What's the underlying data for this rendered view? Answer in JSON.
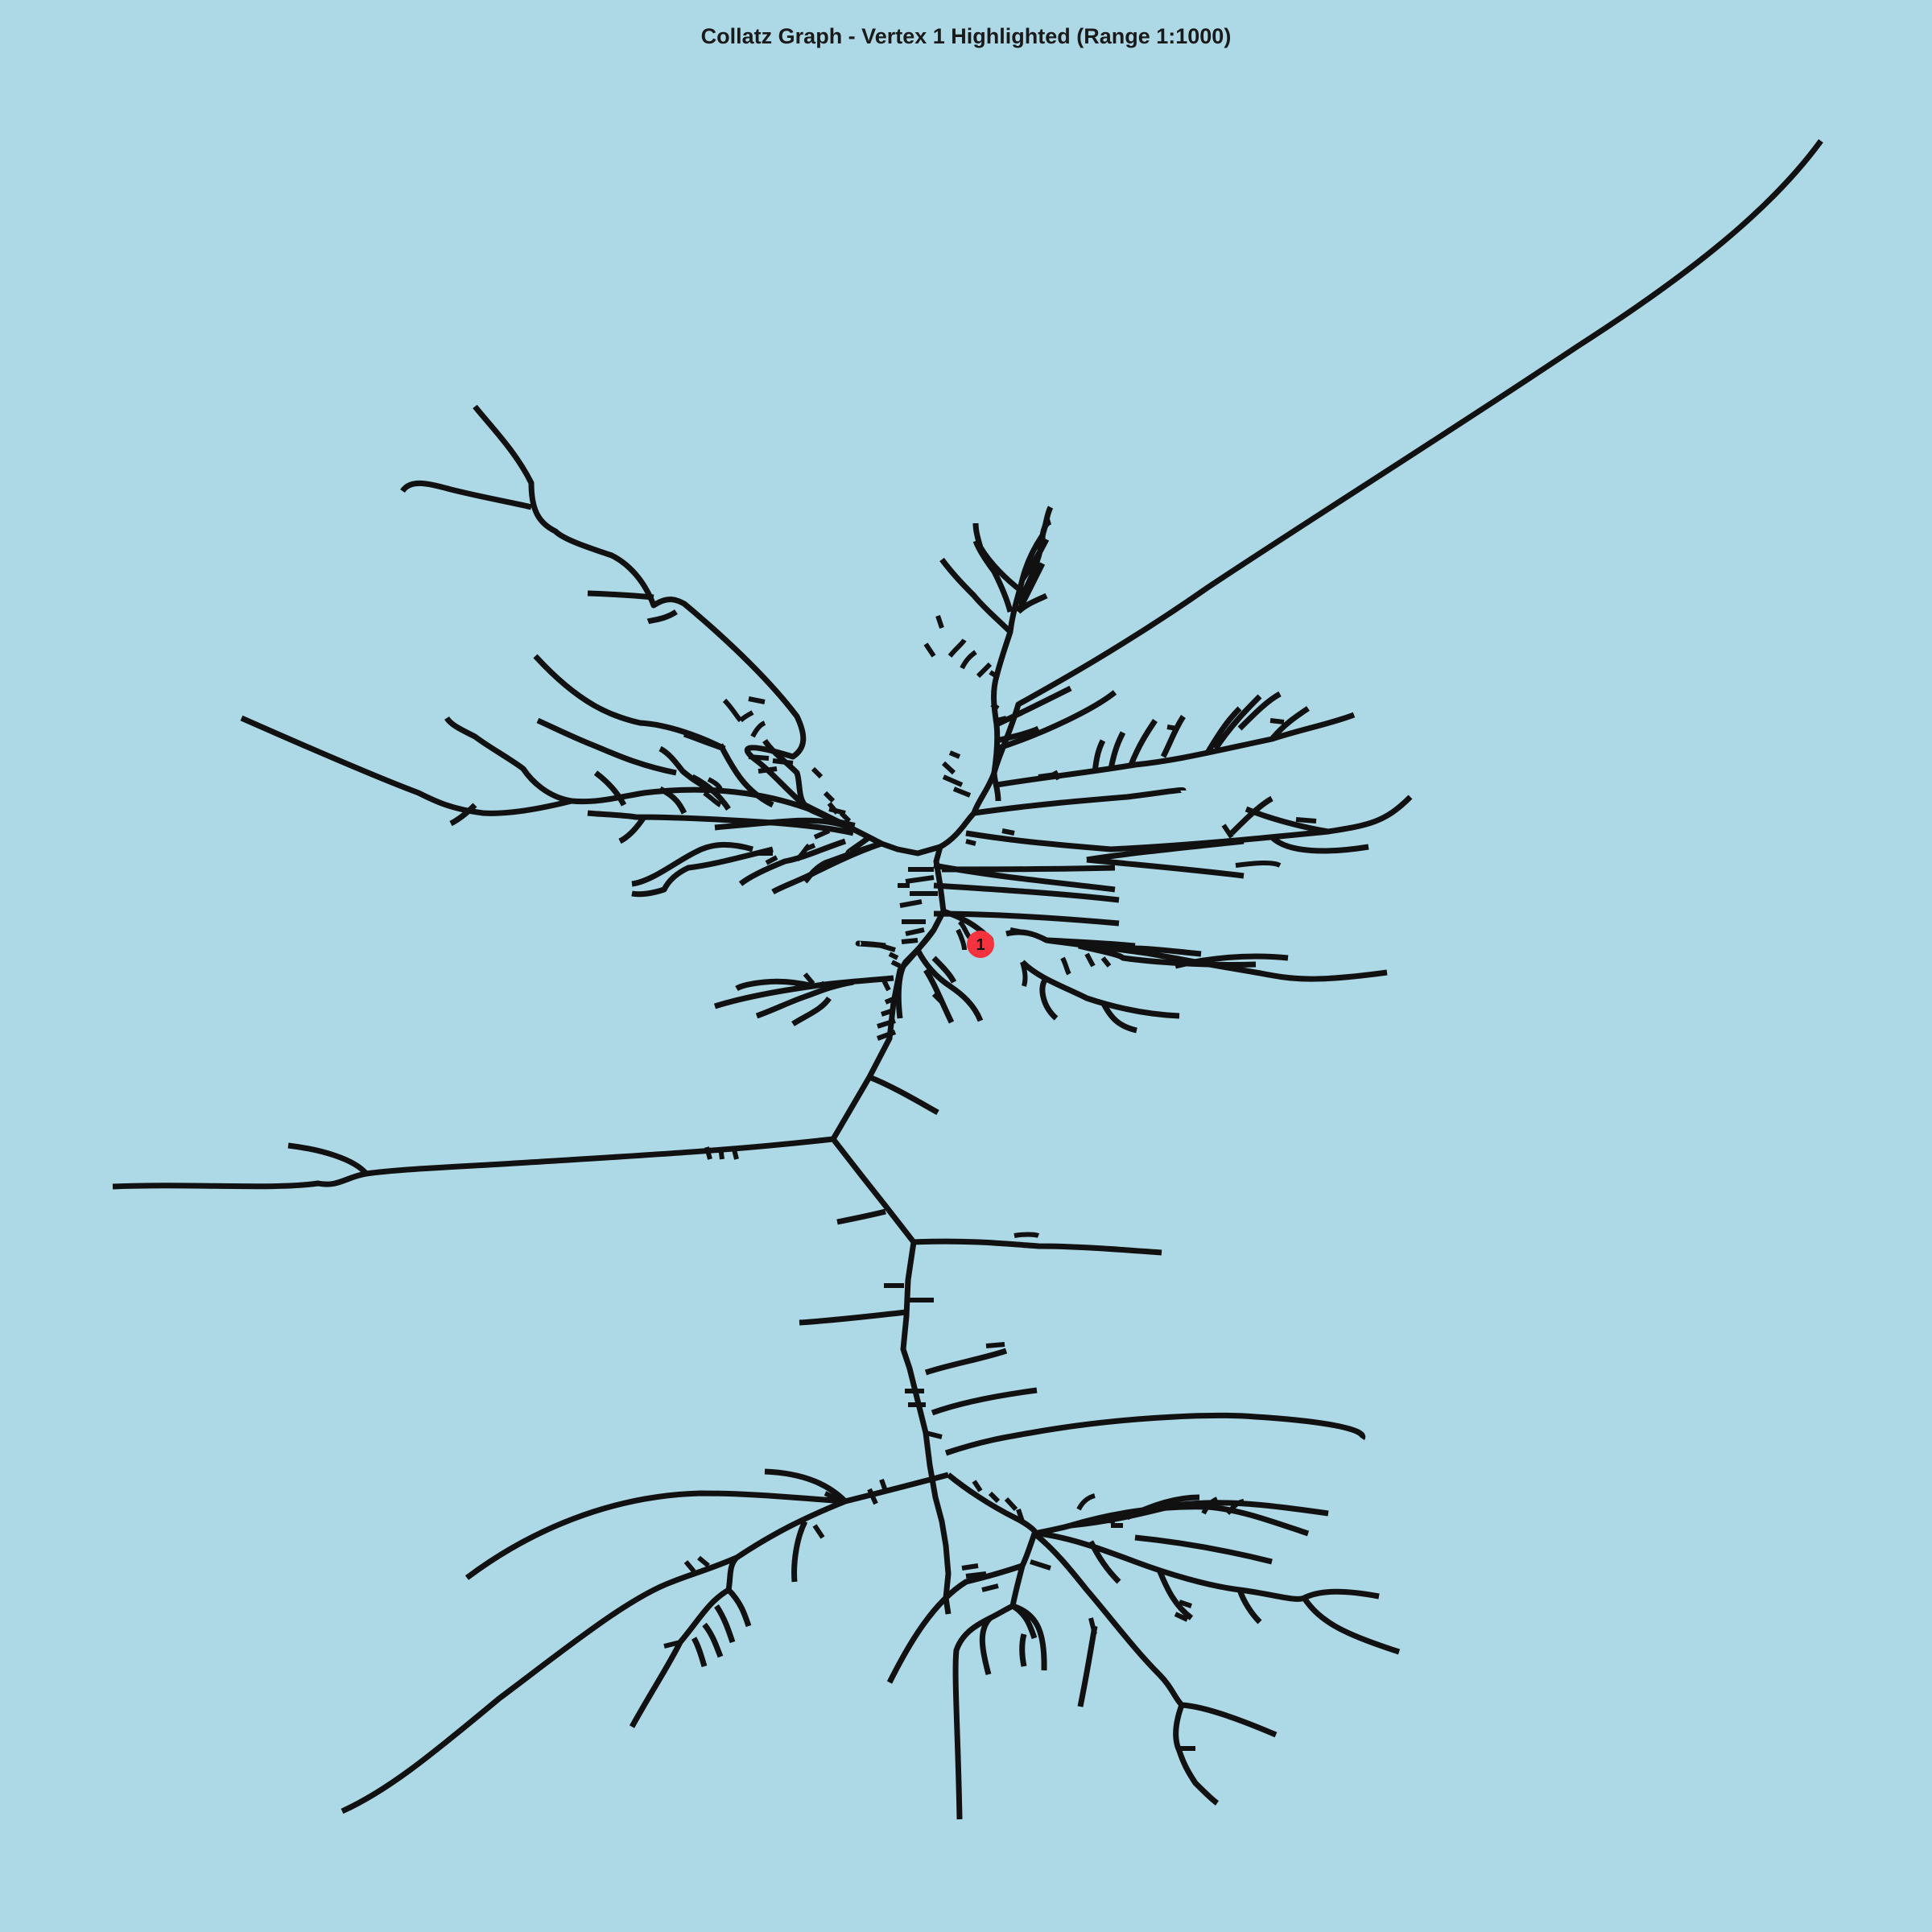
{
  "title": "Collatz Graph - Vertex 1 Highlighted (Range 1:1000)",
  "highlight": {
    "label": "1",
    "color": "#f4333f"
  },
  "colors": {
    "background": "#add8e6",
    "edges": "#111111"
  }
}
